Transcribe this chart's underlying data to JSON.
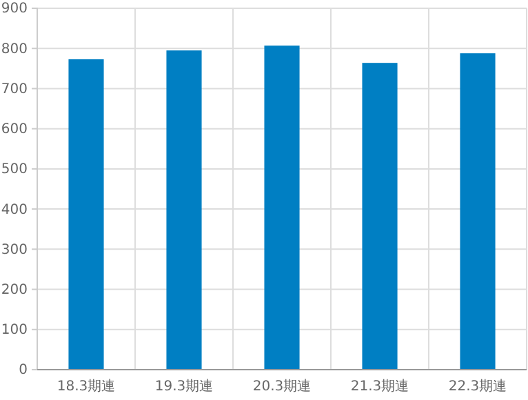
{
  "chart_data": {
    "type": "bar",
    "categories": [
      "18.3期連",
      "19.3期連",
      "20.3期連",
      "21.3期連",
      "22.3期連"
    ],
    "values": [
      773,
      795,
      807,
      764,
      788
    ],
    "color": "#007fc3",
    "ylim": [
      0,
      900
    ],
    "yticks": [
      0,
      100,
      200,
      300,
      400,
      500,
      600,
      700,
      800,
      900
    ],
    "grid": true
  }
}
